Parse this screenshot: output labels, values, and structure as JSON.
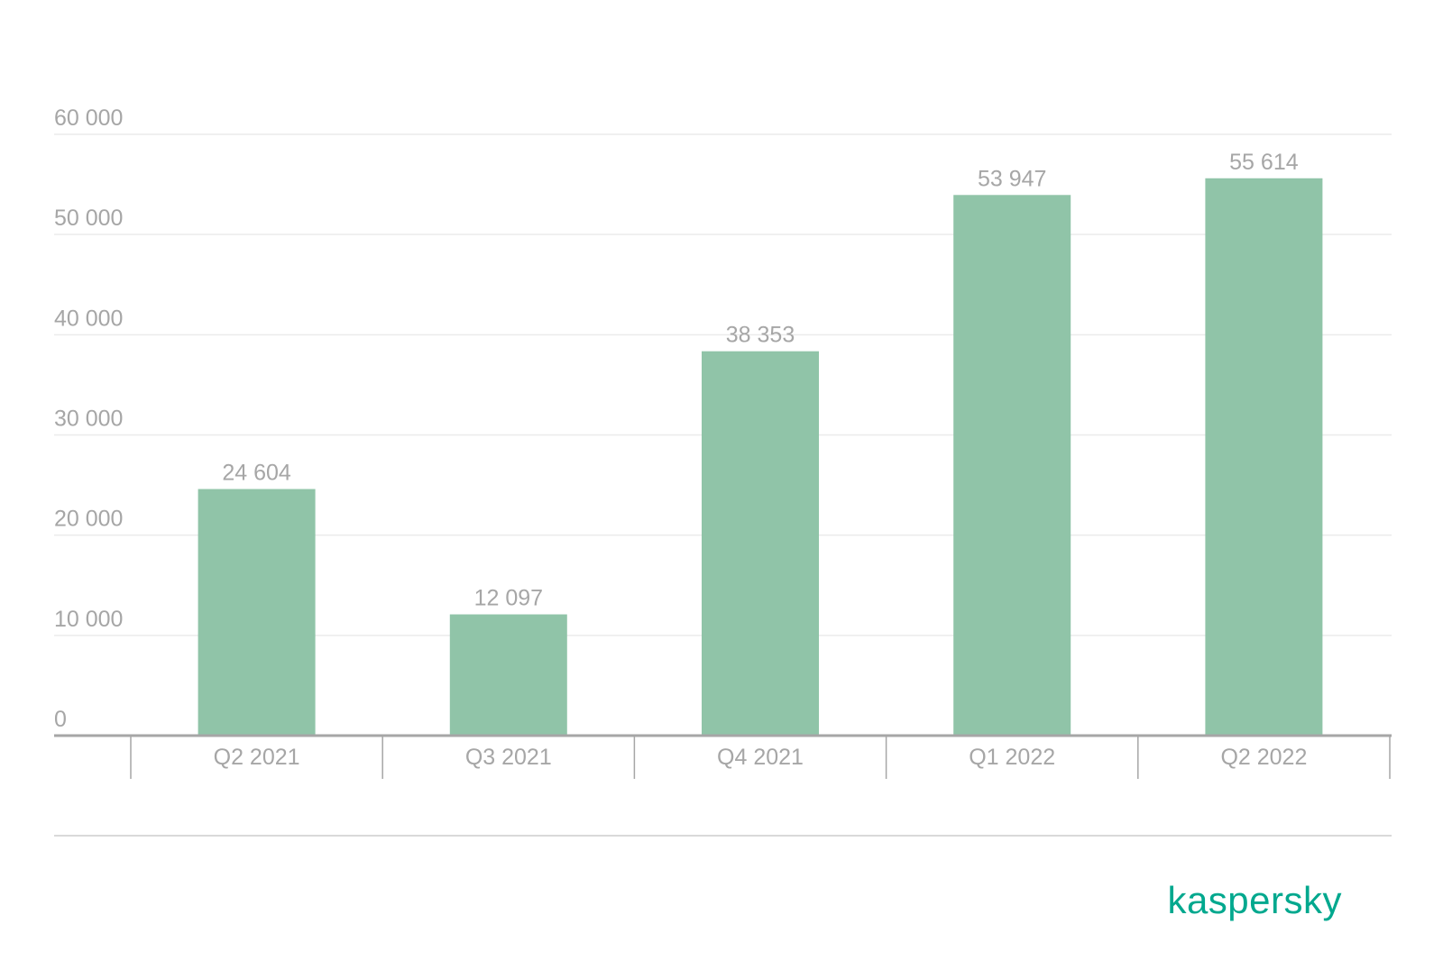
{
  "colors": {
    "bar": "#90c4a8",
    "text": "#a6a6a6",
    "brand": "#00a88e"
  },
  "brand": {
    "logo_text": "kaspersky"
  },
  "chart_data": {
    "type": "bar",
    "categories": [
      "Q2 2021",
      "Q3 2021",
      "Q4 2021",
      "Q1 2022",
      "Q2 2022"
    ],
    "values": [
      24604,
      12097,
      38353,
      53947,
      55614
    ],
    "data_labels": [
      "24 604",
      "12 097",
      "38 353",
      "53 947",
      "55 614"
    ],
    "yticks": [
      0,
      10000,
      20000,
      30000,
      40000,
      50000,
      60000
    ],
    "ytick_labels": [
      "0",
      "10 000",
      "20 000",
      "30 000",
      "40 000",
      "50 000",
      "60 000"
    ],
    "ylim": [
      0,
      60000
    ],
    "title": "",
    "xlabel": "",
    "ylabel": "",
    "grid": true,
    "legend": "none"
  }
}
